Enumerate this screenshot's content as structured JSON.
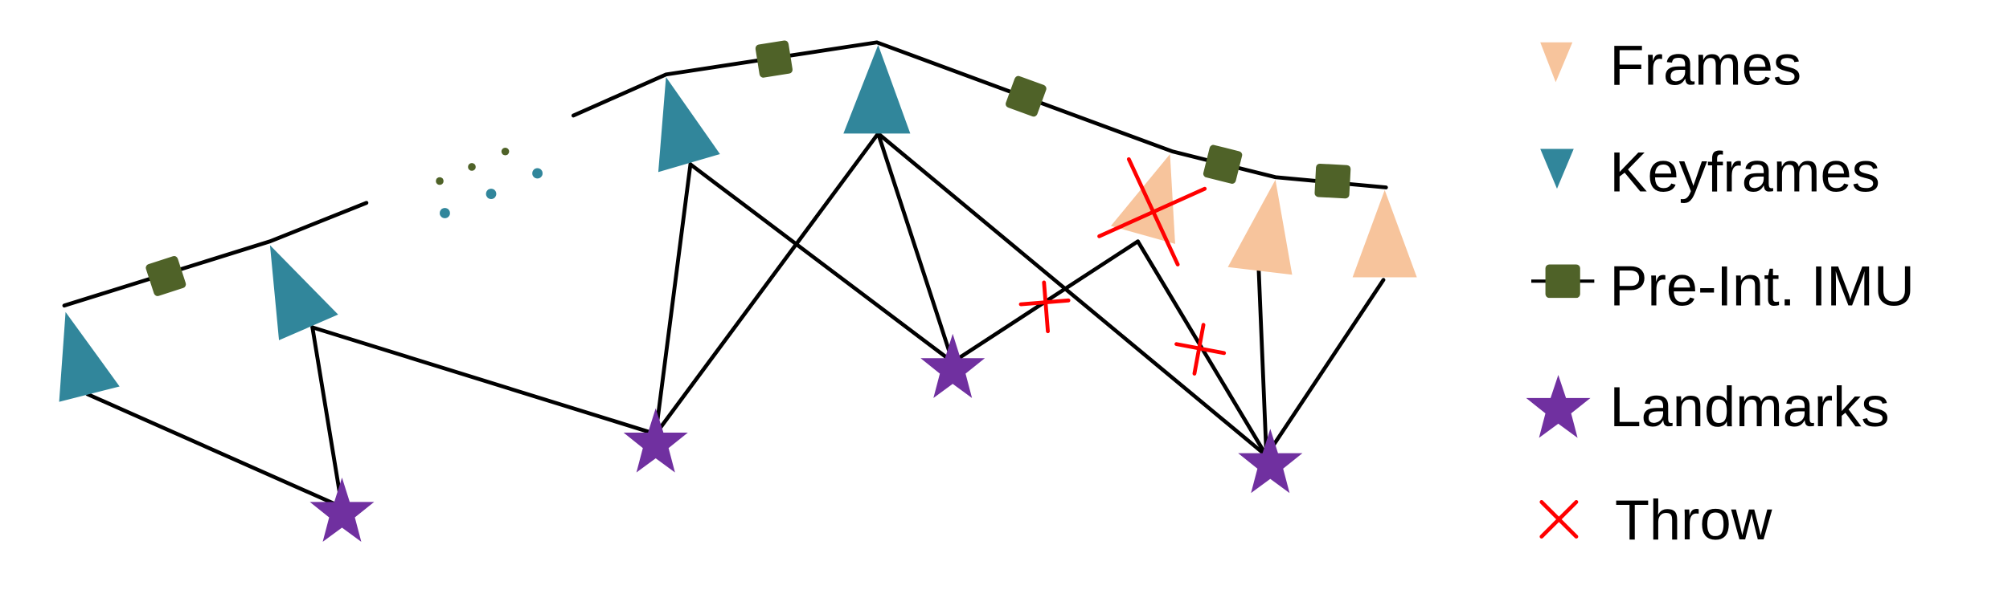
{
  "legend": {
    "items": [
      {
        "key": "frames",
        "label": "Frames"
      },
      {
        "key": "keyframes",
        "label": "Keyframes"
      },
      {
        "key": "imu",
        "label": "Pre-Int. IMU"
      },
      {
        "key": "landmarks",
        "label": "Landmarks"
      },
      {
        "key": "throw",
        "label": "Throw"
      }
    ]
  },
  "colors": {
    "frame": "#F7C49C",
    "keyframe": "#31869B",
    "imu": "#4F6228",
    "landmark": "#7030A0",
    "throw": "#FF0000",
    "edge": "#000000"
  }
}
